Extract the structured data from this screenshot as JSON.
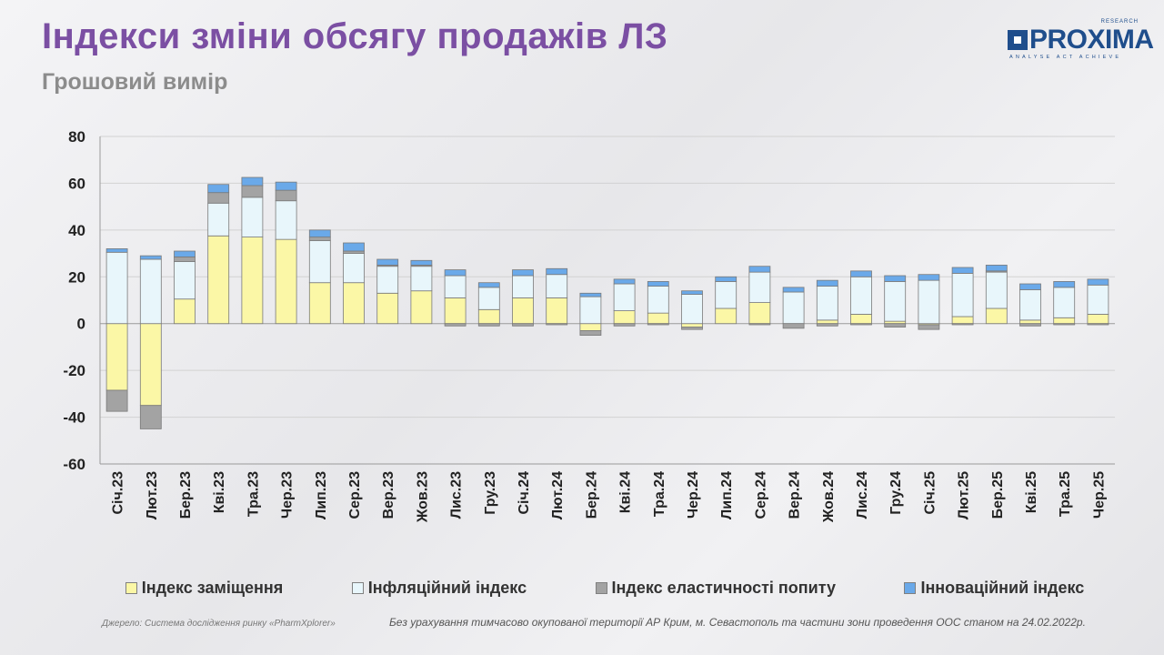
{
  "header": {
    "title": "Індекси зміни обсягу продажів ЛЗ",
    "subtitle": "Грошовий вимір"
  },
  "logo": {
    "word": "PROXIMA",
    "superscript": "RESEARCH",
    "tagline": "ANALYSE ACT ACHIEVE"
  },
  "colors": {
    "substitution": "#fbf7a6",
    "inflation": "#e8f6fb",
    "elasticity": "#a3a3a3",
    "innovation": "#6aa9e9"
  },
  "chart_data": {
    "type": "bar",
    "stacked": true,
    "categories": [
      "Січ.23",
      "Лют.23",
      "Бер.23",
      "Кві.23",
      "Тра.23",
      "Чер.23",
      "Лип.23",
      "Сер.23",
      "Вер.23",
      "Жов.23",
      "Лис.23",
      "Гру.23",
      "Січ.24",
      "Лют.24",
      "Бер.24",
      "Кві.24",
      "Тра.24",
      "Чер.24",
      "Лип.24",
      "Сер.24",
      "Вер.24",
      "Жов.24",
      "Лис.24",
      "Гру.24",
      "Січ.25",
      "Лют.25",
      "Бер.25",
      "Кві.25",
      "Тра.25",
      "Чер.25"
    ],
    "ylim": [
      -60,
      80
    ],
    "yticks": [
      "80",
      "60",
      "40",
      "20",
      "0",
      "-20",
      "-40",
      "-60"
    ],
    "grid": true,
    "legend_position": "bottom",
    "series": [
      {
        "name": "Індекс заміщення",
        "key": "substitution",
        "values": [
          -28.5,
          -35,
          10.5,
          37.5,
          37,
          36,
          17.5,
          17.5,
          13,
          14,
          11,
          6,
          11,
          11,
          -3,
          5.5,
          4.5,
          -1.5,
          6.5,
          9,
          0,
          1.5,
          4,
          1,
          -0.5,
          3,
          6.5,
          1.5,
          2.5,
          4
        ]
      },
      {
        "name": "Інфляційний індекс",
        "key": "inflation",
        "values": [
          30.5,
          27.5,
          16,
          14,
          17,
          16.5,
          18,
          12.5,
          11.5,
          10.5,
          9.5,
          9.5,
          9.5,
          10,
          11.5,
          11.5,
          11.5,
          12.5,
          11.5,
          13,
          13.5,
          14.5,
          16,
          17,
          18.5,
          18.5,
          15.5,
          13,
          13,
          12.5
        ]
      },
      {
        "name": "Індекс еластичності попиту",
        "key": "elasticity",
        "values": [
          -9,
          -10,
          2,
          4.5,
          5,
          4.5,
          1.5,
          1,
          0.5,
          0.5,
          -1,
          -1,
          -1,
          -0.5,
          -2,
          -1,
          -0.5,
          -1,
          0,
          -0.5,
          -2,
          -1,
          -0.5,
          -1.5,
          -2,
          -0.5,
          0.5,
          -1,
          -0.5,
          -0.5
        ]
      },
      {
        "name": "Інноваційний індекс",
        "key": "innovation",
        "values": [
          1.5,
          1.5,
          2.5,
          3.5,
          3.5,
          3.5,
          3,
          3.5,
          2.5,
          2,
          2.5,
          2,
          2.5,
          2.5,
          1.5,
          2,
          2,
          1.5,
          2,
          2.5,
          2,
          2.5,
          2.5,
          2.5,
          2.5,
          2.5,
          2.5,
          2.5,
          2.5,
          2.5
        ]
      }
    ]
  },
  "footer": {
    "source": "Джерело: Система дослідження ринку «PharmXplorer»",
    "note": "Без урахування тимчасово окупованої території АР Крим, м. Севастополь та частини зони проведення ООС станом на 24.02.2022р."
  }
}
